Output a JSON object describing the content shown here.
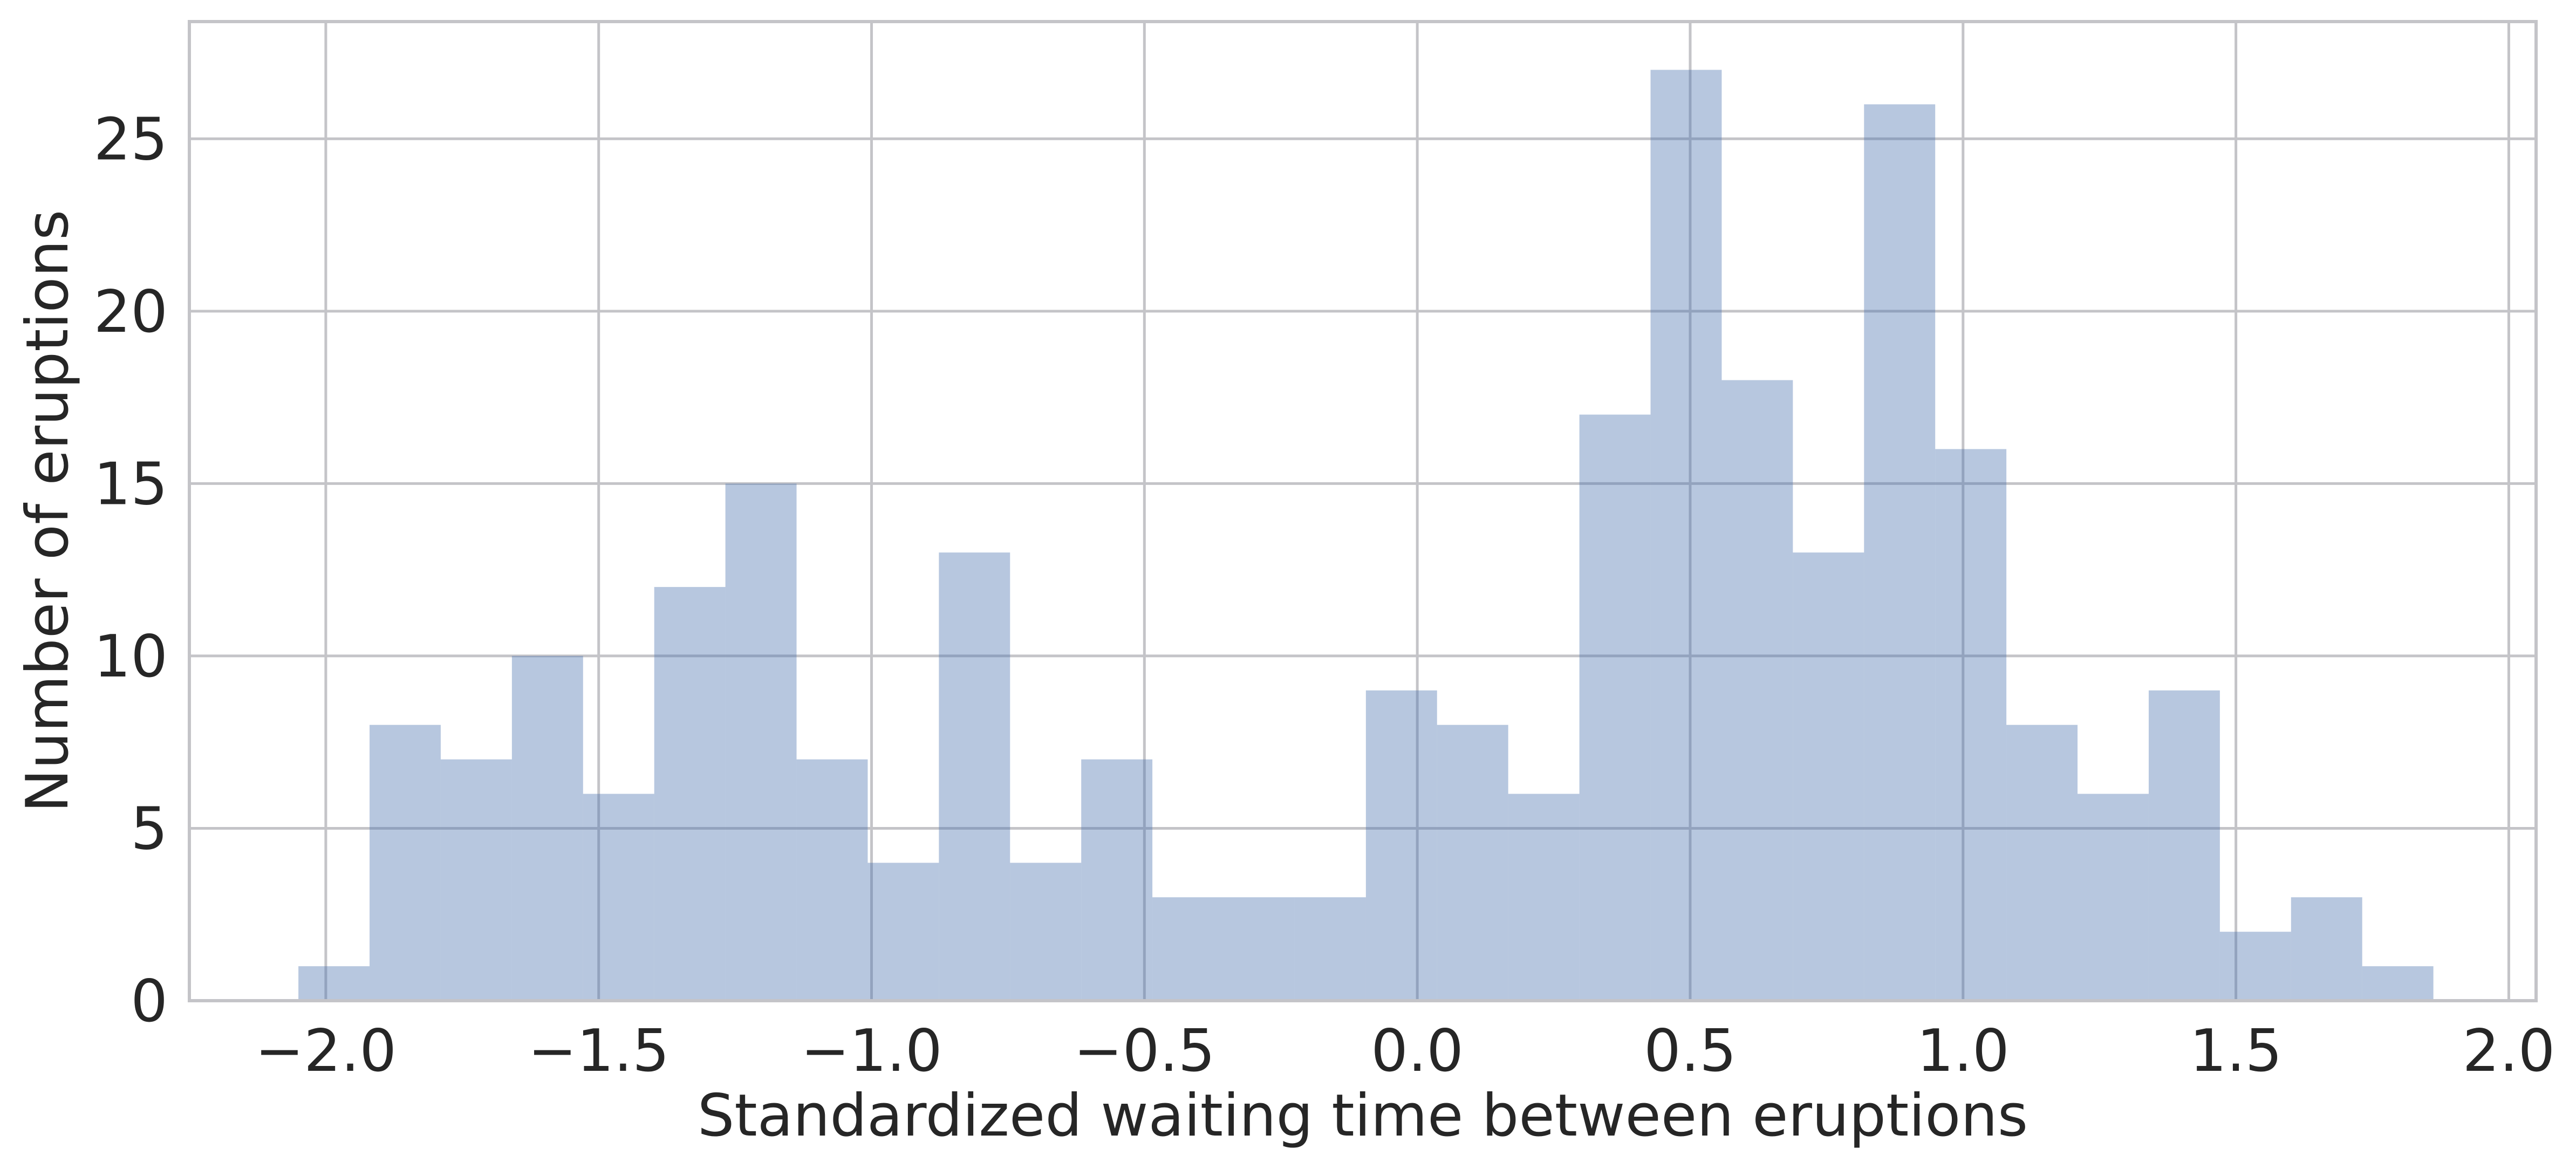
{
  "chart_data": {
    "type": "bar",
    "title": "",
    "xlabel": "Standardized waiting time between eruptions",
    "ylabel": "Number of eruptions",
    "xlim": [
      -2.25,
      2.05
    ],
    "ylim": [
      0,
      28.4
    ],
    "xticks": [
      -2.0,
      -1.5,
      -1.0,
      -0.5,
      0.0,
      0.5,
      1.0,
      1.5,
      2.0
    ],
    "xtick_labels": [
      "−2.0",
      "−1.5",
      "−1.0",
      "−0.5",
      "0.0",
      "0.5",
      "1.0",
      "1.5",
      "2.0"
    ],
    "yticks": [
      0,
      5,
      10,
      15,
      20,
      25
    ],
    "ytick_labels": [
      "0",
      "5",
      "10",
      "15",
      "20",
      "25"
    ],
    "grid": true,
    "bar_color": "#4c72b0",
    "bin_start": -2.0502,
    "bin_width": 0.1304,
    "counts": [
      1,
      8,
      7,
      10,
      6,
      12,
      15,
      7,
      4,
      13,
      4,
      7,
      3,
      3,
      3,
      9,
      8,
      6,
      17,
      27,
      18,
      13,
      26,
      16,
      8,
      6,
      9,
      2,
      3,
      1
    ]
  }
}
